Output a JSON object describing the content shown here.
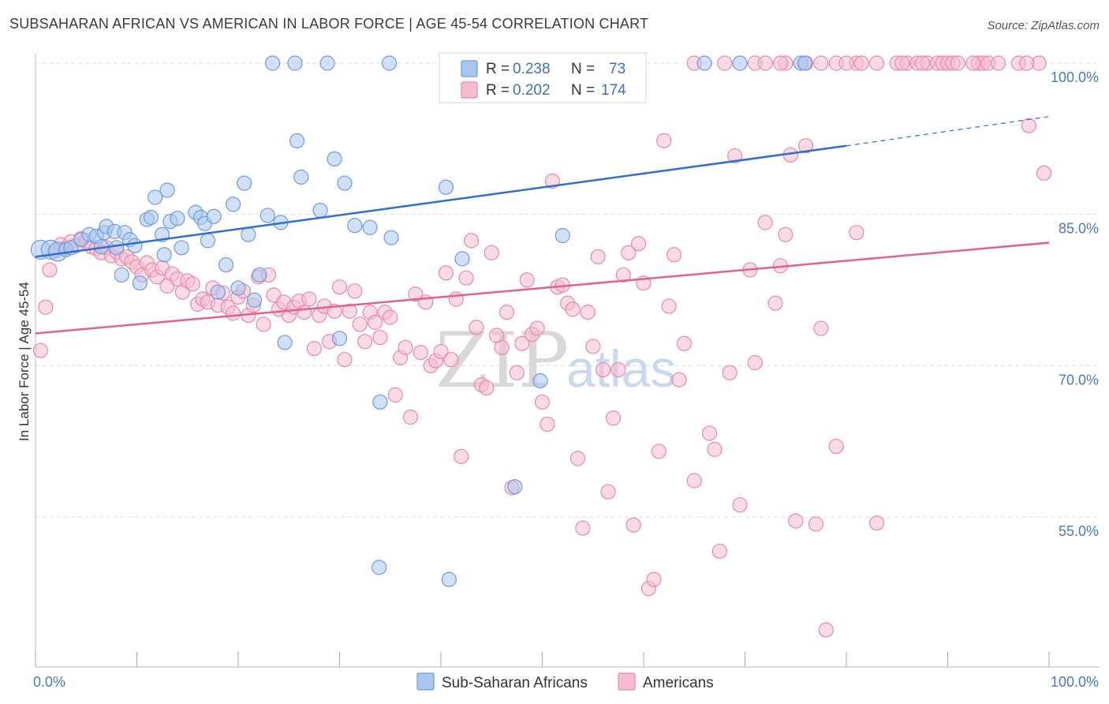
{
  "title": "SUBSAHARAN AFRICAN VS AMERICAN IN LABOR FORCE | AGE 45-54 CORRELATION CHART",
  "source": "Source: ZipAtlas.com",
  "watermark": {
    "zip": "ZIP",
    "atlas": "atlas"
  },
  "legend": {
    "r_label": "R =",
    "n_label": "N =",
    "rows": [
      {
        "r": "0.238",
        "n": "73"
      },
      {
        "r": "0.202",
        "n": "174"
      }
    ]
  },
  "colors": {
    "blue_fill": "#a9c6ef",
    "blue_stroke": "#6f9be0",
    "blue_line": "#2e6fd1",
    "pink_fill": "#f5bcd0",
    "pink_stroke": "#e889a9",
    "pink_line": "#e0628e",
    "grid": "#dddddd",
    "tick_text": "#4a78c7"
  },
  "chart_data": {
    "type": "scatter",
    "title": "SUBSAHARAN AFRICAN VS AMERICAN IN LABOR FORCE | AGE 45-54 CORRELATION CHART",
    "xlabel": "",
    "ylabel": "In Labor Force | Age 45-54",
    "xlim": [
      0,
      100
    ],
    "ylim": [
      40,
      102
    ],
    "x_tick_labels": [
      "0.0%",
      "100.0%"
    ],
    "y_ticks": [
      55,
      70,
      85,
      100
    ],
    "y_tick_labels": [
      "55.0%",
      "70.0%",
      "85.0%",
      "100.0%"
    ],
    "grid": true,
    "legend_position": "top-center",
    "series": [
      {
        "name": "Sub-Saharan Africans",
        "color": "#a9c6ef",
        "r": 0.238,
        "n": 73,
        "trend": {
          "x": [
            0,
            80
          ],
          "y": [
            80.8,
            91.8
          ],
          "dashed_to": [
            100,
            94.7
          ]
        },
        "points": [
          [
            0.5,
            81.5
          ],
          [
            1.5,
            81.5
          ],
          [
            2.2,
            81.3
          ],
          [
            3.0,
            81.5
          ],
          [
            3.5,
            81.7
          ],
          [
            4.5,
            82.5
          ],
          [
            5.3,
            83.0
          ],
          [
            6.0,
            82.8
          ],
          [
            6.5,
            81.8
          ],
          [
            6.8,
            83.2
          ],
          [
            7.0,
            83.8
          ],
          [
            7.8,
            83.3
          ],
          [
            8.0,
            81.7
          ],
          [
            8.5,
            79.0
          ],
          [
            8.8,
            83.2
          ],
          [
            9.3,
            82.5
          ],
          [
            9.8,
            81.9
          ],
          [
            10.3,
            78.2
          ],
          [
            11.0,
            84.5
          ],
          [
            11.4,
            84.7
          ],
          [
            11.8,
            86.7
          ],
          [
            12.5,
            83.0
          ],
          [
            12.7,
            81.0
          ],
          [
            13.0,
            87.4
          ],
          [
            13.3,
            84.3
          ],
          [
            14.0,
            84.6
          ],
          [
            14.4,
            81.7
          ],
          [
            15.8,
            85.2
          ],
          [
            16.3,
            84.7
          ],
          [
            16.7,
            84.1
          ],
          [
            17.0,
            82.4
          ],
          [
            17.6,
            84.8
          ],
          [
            18.0,
            77.3
          ],
          [
            18.8,
            80.0
          ],
          [
            19.5,
            86.0
          ],
          [
            20.0,
            77.7
          ],
          [
            20.6,
            88.1
          ],
          [
            21.0,
            83.0
          ],
          [
            21.6,
            76.5
          ],
          [
            22.1,
            79.0
          ],
          [
            22.9,
            84.9
          ],
          [
            23.4,
            100.0
          ],
          [
            24.2,
            84.2
          ],
          [
            24.6,
            72.3
          ],
          [
            25.6,
            100.0
          ],
          [
            25.8,
            92.3
          ],
          [
            26.2,
            88.7
          ],
          [
            28.1,
            85.4
          ],
          [
            28.8,
            100.0
          ],
          [
            29.5,
            90.5
          ],
          [
            30.0,
            72.7
          ],
          [
            30.5,
            88.1
          ],
          [
            31.5,
            83.9
          ],
          [
            33.0,
            83.7
          ],
          [
            34.0,
            66.4
          ],
          [
            34.9,
            100.0
          ],
          [
            35.1,
            82.7
          ],
          [
            40.5,
            87.7
          ],
          [
            42.1,
            80.6
          ],
          [
            43.6,
            100.0
          ],
          [
            47.3,
            58.0
          ],
          [
            49.4,
            100.0
          ],
          [
            49.8,
            68.5
          ],
          [
            52.0,
            82.9
          ],
          [
            55.0,
            100.0
          ],
          [
            66.0,
            100.0
          ],
          [
            75.5,
            100.0
          ],
          [
            33.9,
            50.0
          ],
          [
            40.8,
            48.8
          ],
          [
            43.6,
            100.0
          ],
          [
            55.4,
            100.0
          ],
          [
            75.9,
            100.0
          ],
          [
            69.5,
            100.0
          ]
        ]
      },
      {
        "name": "Americans",
        "color": "#f5bcd0",
        "r": 0.202,
        "n": 174,
        "trend": {
          "x": [
            0,
            100
          ],
          "y": [
            73.2,
            82.2
          ]
        },
        "points": [
          [
            0.5,
            71.5
          ],
          [
            1.0,
            75.8
          ],
          [
            1.4,
            79.5
          ],
          [
            2.0,
            81.4
          ],
          [
            2.5,
            82.0
          ],
          [
            3.0,
            81.7
          ],
          [
            3.5,
            82.3
          ],
          [
            4.0,
            81.9
          ],
          [
            4.5,
            82.6
          ],
          [
            5.0,
            82.4
          ],
          [
            5.5,
            81.8
          ],
          [
            6.0,
            81.6
          ],
          [
            6.5,
            81.2
          ],
          [
            7.0,
            81.7
          ],
          [
            7.5,
            80.9
          ],
          [
            8.0,
            81.3
          ],
          [
            8.5,
            80.6
          ],
          [
            9.0,
            80.8
          ],
          [
            9.5,
            80.3
          ],
          [
            10.0,
            79.8
          ],
          [
            10.5,
            79.0
          ],
          [
            11.0,
            80.2
          ],
          [
            11.5,
            79.5
          ],
          [
            12.0,
            78.8
          ],
          [
            12.5,
            79.7
          ],
          [
            13.0,
            77.9
          ],
          [
            13.5,
            79.1
          ],
          [
            14.0,
            78.6
          ],
          [
            14.5,
            77.3
          ],
          [
            15.0,
            78.4
          ],
          [
            15.5,
            78.1
          ],
          [
            16.0,
            76.1
          ],
          [
            16.5,
            76.6
          ],
          [
            17.0,
            76.3
          ],
          [
            17.5,
            77.7
          ],
          [
            18.0,
            76.0
          ],
          [
            18.5,
            77.2
          ],
          [
            19.0,
            75.8
          ],
          [
            19.5,
            75.2
          ],
          [
            20.0,
            76.8
          ],
          [
            20.5,
            77.4
          ],
          [
            21.0,
            75.0
          ],
          [
            21.5,
            76.0
          ],
          [
            22.0,
            78.8
          ],
          [
            22.5,
            74.1
          ],
          [
            23.0,
            79.0
          ],
          [
            23.5,
            77.0
          ],
          [
            24.0,
            75.6
          ],
          [
            24.5,
            76.3
          ],
          [
            25.0,
            75.0
          ],
          [
            25.5,
            75.8
          ],
          [
            26.0,
            76.4
          ],
          [
            26.5,
            75.3
          ],
          [
            27.0,
            76.6
          ],
          [
            27.5,
            71.7
          ],
          [
            28.0,
            75.0
          ],
          [
            28.5,
            75.9
          ],
          [
            29.0,
            72.4
          ],
          [
            29.5,
            75.4
          ],
          [
            30.0,
            77.8
          ],
          [
            30.5,
            70.6
          ],
          [
            31.0,
            75.4
          ],
          [
            31.5,
            77.4
          ],
          [
            32.0,
            74.1
          ],
          [
            32.5,
            72.4
          ],
          [
            33.0,
            75.3
          ],
          [
            33.5,
            74.3
          ],
          [
            34.0,
            72.8
          ],
          [
            34.5,
            75.3
          ],
          [
            35.0,
            74.8
          ],
          [
            35.5,
            67.1
          ],
          [
            36.0,
            70.8
          ],
          [
            36.5,
            71.8
          ],
          [
            37.0,
            64.9
          ],
          [
            37.5,
            77.1
          ],
          [
            38.0,
            71.3
          ],
          [
            38.5,
            76.3
          ],
          [
            39.0,
            70.0
          ],
          [
            39.5,
            70.5
          ],
          [
            40.0,
            71.4
          ],
          [
            40.5,
            79.2
          ],
          [
            41.0,
            70.6
          ],
          [
            41.5,
            76.6
          ],
          [
            42.0,
            61.0
          ],
          [
            42.5,
            78.7
          ],
          [
            43.0,
            82.4
          ],
          [
            43.5,
            73.8
          ],
          [
            44.0,
            68.1
          ],
          [
            44.5,
            67.8
          ],
          [
            45.0,
            81.2
          ],
          [
            45.5,
            73.0
          ],
          [
            46.0,
            71.8
          ],
          [
            46.5,
            75.3
          ],
          [
            47.0,
            57.9
          ],
          [
            47.5,
            69.3
          ],
          [
            48.0,
            72.2
          ],
          [
            48.5,
            78.5
          ],
          [
            49.0,
            73.1
          ],
          [
            49.5,
            73.7
          ],
          [
            50.0,
            66.4
          ],
          [
            50.5,
            64.2
          ],
          [
            51.0,
            88.3
          ],
          [
            51.5,
            77.8
          ],
          [
            52.0,
            78.0
          ],
          [
            52.5,
            76.2
          ],
          [
            53.0,
            75.6
          ],
          [
            53.5,
            60.8
          ],
          [
            54.0,
            53.9
          ],
          [
            54.5,
            75.3
          ],
          [
            55.0,
            71.9
          ],
          [
            55.5,
            80.8
          ],
          [
            56.0,
            69.6
          ],
          [
            56.5,
            57.5
          ],
          [
            57.0,
            64.8
          ],
          [
            57.5,
            69.6
          ],
          [
            58.0,
            79.0
          ],
          [
            58.5,
            81.2
          ],
          [
            59.0,
            54.2
          ],
          [
            59.5,
            82.1
          ],
          [
            60.0,
            78.2
          ],
          [
            60.5,
            47.9
          ],
          [
            61.0,
            48.8
          ],
          [
            61.5,
            61.5
          ],
          [
            62.0,
            92.3
          ],
          [
            62.5,
            75.9
          ],
          [
            63.0,
            81.0
          ],
          [
            63.5,
            68.6
          ],
          [
            64.0,
            72.2
          ],
          [
            65.0,
            58.6
          ],
          [
            66.5,
            63.3
          ],
          [
            67.0,
            61.7
          ],
          [
            67.5,
            51.6
          ],
          [
            68.5,
            69.3
          ],
          [
            69.0,
            90.8
          ],
          [
            69.5,
            56.2
          ],
          [
            70.5,
            79.5
          ],
          [
            71.0,
            70.3
          ],
          [
            72.0,
            84.2
          ],
          [
            73.0,
            76.2
          ],
          [
            73.5,
            79.9
          ],
          [
            74.0,
            83.0
          ],
          [
            74.5,
            90.9
          ],
          [
            75.0,
            54.6
          ],
          [
            76.0,
            91.8
          ],
          [
            77.0,
            54.3
          ],
          [
            77.5,
            73.7
          ],
          [
            78.0,
            43.8
          ],
          [
            79.0,
            62.0
          ],
          [
            81.0,
            83.2
          ],
          [
            83.0,
            54.4
          ],
          [
            98.0,
            93.8
          ],
          [
            99.5,
            89.1
          ],
          [
            65.0,
            100.0
          ],
          [
            68.0,
            100.0
          ],
          [
            71.0,
            100.0
          ],
          [
            72.0,
            100.0
          ],
          [
            76.0,
            100.0
          ],
          [
            77.5,
            100.0
          ],
          [
            79.0,
            100.0
          ],
          [
            81.0,
            100.0
          ],
          [
            81.5,
            100.0
          ],
          [
            83.0,
            100.0
          ],
          [
            85.0,
            100.0
          ],
          [
            86.0,
            100.0
          ],
          [
            87.0,
            100.0
          ],
          [
            88.0,
            100.0
          ],
          [
            89.0,
            100.0
          ],
          [
            89.5,
            100.0
          ],
          [
            90.0,
            100.0
          ],
          [
            90.5,
            100.0
          ],
          [
            91.0,
            100.0
          ],
          [
            93.0,
            100.0
          ],
          [
            93.5,
            100.0
          ],
          [
            94.0,
            100.0
          ],
          [
            95.0,
            100.0
          ],
          [
            97.0,
            100.0
          ],
          [
            99.0,
            100.0
          ],
          [
            97.8,
            100.0
          ],
          [
            85.5,
            100.0
          ],
          [
            87.5,
            100.0
          ],
          [
            92.5,
            100.0
          ],
          [
            80.0,
            100.0
          ],
          [
            74.0,
            100.0
          ],
          [
            73.5,
            100.0
          ]
        ]
      }
    ]
  },
  "bottom_legend": [
    {
      "label": "Sub-Saharan Africans"
    },
    {
      "label": "Americans"
    }
  ]
}
